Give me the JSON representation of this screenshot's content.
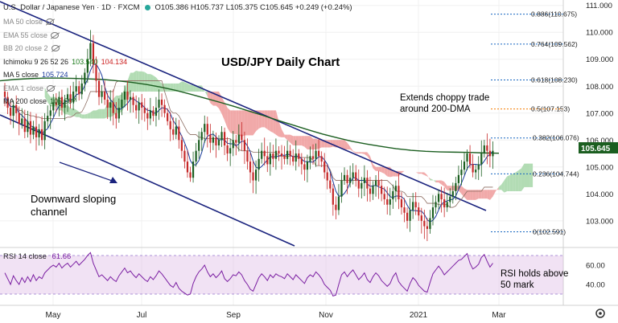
{
  "header": {
    "symbol": "U.S. Dollar / Japanese Yen · 1D · FXCM",
    "ohlc": "O105.386 H105.737 L105.375 C105.645 +0.249 (+0.24%)",
    "dot_color": "#26a69a"
  },
  "indicators": [
    {
      "label": "MA 50 close",
      "value": "",
      "value_color": "#000000",
      "hidden": true
    },
    {
      "label": "EMA 55 close",
      "value": "",
      "value_color": "#000000",
      "hidden": true
    },
    {
      "label": "BB 20 close 2",
      "value": "",
      "value_color": "#000000",
      "hidden": true
    },
    {
      "label": "Ichimoku 9 26 52 26",
      "value": "103.540",
      "value2": "104.134",
      "value_color": "#1b7a1b",
      "value2_color": "#c22",
      "hidden": false
    },
    {
      "label": "MA 5 close",
      "value": "105.724",
      "value_color": "#1a3a9c",
      "hidden": false
    },
    {
      "label": "EMA 1 close",
      "value": "",
      "value_color": "#000000",
      "hidden": true
    },
    {
      "label": "MA 200 close",
      "value": "105.507",
      "value_color": "#1b5e20",
      "hidden": false
    }
  ],
  "annotations": {
    "title": "USD/JPY Daily Chart",
    "choppy": [
      "Extends choppy trade",
      "around 200-DMA"
    ],
    "channel": [
      "Downward sloping",
      "channel"
    ],
    "rsi_note": [
      "RSI holds above",
      "50 mark"
    ]
  },
  "price_badge": {
    "value": "105.645",
    "color": "#1b5e20"
  },
  "rsi_header": {
    "label": "RSI 14 close",
    "value": "61.66"
  },
  "chart_data": {
    "type": "candlestick",
    "price_axis": {
      "ticks": [
        103.0,
        104.0,
        105.0,
        106.0,
        107.0,
        108.0,
        109.0,
        110.0,
        111.0
      ],
      "labels": [
        "103.000",
        "104.000",
        "105.000",
        "106.000",
        "107.000",
        "108.000",
        "109.000",
        "110.000",
        "111.000"
      ],
      "ylim": [
        102.1,
        111.2
      ]
    },
    "x_axis": {
      "labels": [
        "May",
        "Jul",
        "Sep",
        "Nov",
        "2021",
        "Mar"
      ]
    },
    "fibonacci": [
      {
        "label": "0.886(110.675)",
        "value": 110.675
      },
      {
        "label": "0.764(109.562)",
        "value": 109.562
      },
      {
        "label": "0.618(108.230)",
        "value": 108.23
      },
      {
        "label": "0.5(107.153)",
        "value": 107.153,
        "color": "#f57c00"
      },
      {
        "label": "0.382(106.076)",
        "value": 106.076
      },
      {
        "label": "0.236(104.744)",
        "value": 104.744
      },
      {
        "label": "0(102.591)",
        "value": 102.591
      }
    ],
    "closes": [
      107.6,
      107.2,
      106.9,
      107.3,
      107.0,
      106.6,
      106.8,
      106.3,
      106.7,
      106.2,
      106.5,
      106.1,
      106.4,
      106.0,
      106.7,
      106.9,
      107.1,
      107.4,
      107.3,
      107.6,
      107.2,
      107.5,
      107.7,
      107.4,
      107.8,
      108.0,
      107.7,
      108.1,
      108.5,
      109.0,
      109.6,
      108.8,
      108.2,
      107.6,
      107.8,
      107.5,
      107.2,
      107.4,
      107.0,
      106.8,
      107.2,
      107.5,
      107.8,
      107.5,
      107.6,
      107.3,
      107.1,
      107.4,
      107.2,
      107.0,
      106.8,
      107.1,
      106.9,
      107.2,
      107.5,
      107.3,
      107.0,
      106.7,
      106.4,
      106.2,
      106.5,
      106.0,
      105.6,
      105.2,
      104.8,
      104.6,
      105.2,
      105.6,
      106.0,
      106.3,
      106.6,
      106.2,
      105.9,
      106.1,
      105.8,
      106.0,
      106.3,
      105.8,
      105.5,
      105.7,
      106.0,
      105.9,
      106.2,
      106.0,
      105.6,
      105.2,
      104.8,
      104.5,
      104.9,
      105.3,
      105.6,
      105.4,
      105.1,
      105.5,
      105.3,
      105.6,
      105.5,
      105.4,
      105.3,
      105.6,
      105.4,
      105.2,
      105.5,
      105.3,
      105.1,
      104.9,
      105.2,
      105.4,
      105.3,
      105.6,
      105.4,
      105.2,
      104.8,
      104.5,
      104.2,
      103.6,
      103.4,
      103.9,
      104.5,
      104.7,
      104.4,
      104.6,
      104.8,
      104.5,
      104.2,
      104.4,
      104.6,
      104.2,
      104.0,
      104.3,
      104.5,
      104.3,
      104.0,
      103.8,
      103.6,
      103.8,
      104.1,
      104.3,
      103.8,
      103.5,
      103.3,
      103.0,
      103.4,
      103.7,
      103.5,
      103.2,
      103.0,
      102.8,
      102.7,
      103.1,
      103.5,
      103.7,
      104.0,
      103.8,
      103.5,
      103.7,
      103.9,
      104.1,
      104.4,
      104.7,
      104.9,
      105.2,
      105.5,
      105.1,
      104.8,
      104.9,
      105.1,
      105.5,
      105.8,
      105.6,
      105.4,
      105.6
    ],
    "ma200": [
      108.2,
      108.25,
      108.28,
      108.3,
      108.3,
      108.29,
      108.27,
      108.25,
      108.2,
      108.14,
      108.06,
      107.96,
      107.84,
      107.7,
      107.55,
      107.4,
      107.24,
      107.07,
      106.9,
      106.72,
      106.55,
      106.38,
      106.22,
      106.08,
      105.95,
      105.85,
      105.76,
      105.68,
      105.62,
      105.58,
      105.56,
      105.55,
      105.54,
      105.52,
      105.51
    ],
    "rsi": {
      "ticks": [
        40,
        60
      ],
      "labels": [
        "40.00",
        "60.00"
      ],
      "ylim": [
        20,
        75
      ],
      "overbought": 70,
      "oversold": 30,
      "current": 61.66
    },
    "rsi_values": [
      52,
      46,
      40,
      49,
      44,
      40,
      47,
      42,
      48,
      43,
      50,
      44,
      48,
      46,
      52,
      55,
      58,
      60,
      58,
      62,
      57,
      60,
      62,
      58,
      61,
      64,
      60,
      63,
      66,
      70,
      73,
      62,
      55,
      48,
      50,
      47,
      44,
      48,
      45,
      43,
      49,
      53,
      57,
      52,
      54,
      50,
      47,
      51,
      48,
      45,
      43,
      48,
      45,
      49,
      54,
      51,
      47,
      43,
      39,
      37,
      42,
      36,
      33,
      31,
      29,
      30,
      41,
      48,
      53,
      56,
      60,
      53,
      48,
      51,
      47,
      50,
      54,
      46,
      43,
      46,
      50,
      49,
      53,
      50,
      44,
      40,
      35,
      33,
      40,
      47,
      51,
      48,
      44,
      50,
      47,
      51,
      49,
      48,
      46,
      51,
      48,
      45,
      50,
      47,
      44,
      41,
      47,
      50,
      48,
      53,
      50,
      46,
      40,
      37,
      34,
      28,
      29,
      40,
      50,
      53,
      48,
      52,
      55,
      50,
      45,
      48,
      52,
      45,
      42,
      48,
      52,
      49,
      44,
      41,
      38,
      41,
      48,
      52,
      43,
      39,
      36,
      33,
      41,
      47,
      44,
      39,
      36,
      33,
      32,
      42,
      51,
      55,
      59,
      55,
      50,
      53,
      56,
      59,
      62,
      65,
      66,
      69,
      72,
      62,
      56,
      58,
      61,
      68,
      71,
      64,
      58,
      62
    ]
  }
}
